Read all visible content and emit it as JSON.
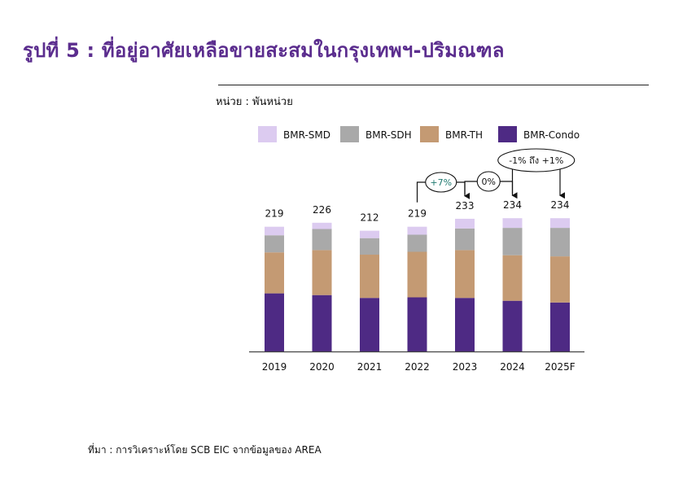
{
  "title": "รูปที่ 5 : ที่อยู่อาศัยเหลือขายสะสมในกรุงเทพฯ-ปริมณฑล",
  "unit_label": "หน่วย : พันหน่วย",
  "source": "ที่มา : การวิเคราะห์โดย SCB EIC จากข้อมูลของ AREA",
  "chart_data": {
    "type": "bar",
    "stacked": true,
    "categories": [
      "2019",
      "2020",
      "2021",
      "2022",
      "2023",
      "2024",
      "2025F"
    ],
    "series": [
      {
        "name": "BMR-Condo",
        "color": "#4e2a84",
        "values": [
          102,
          99,
          94,
          95,
          94,
          89,
          86
        ]
      },
      {
        "name": "BMR-TH",
        "color": "#c49a73",
        "values": [
          72,
          79,
          76,
          80,
          84,
          80,
          81
        ]
      },
      {
        "name": "BMR-SDH",
        "color": "#a9a9a9",
        "values": [
          30,
          37,
          29,
          30,
          38,
          48,
          50
        ]
      },
      {
        "name": "BMR-SMD",
        "color": "#dccbf0",
        "values": [
          15,
          11,
          13,
          14,
          17,
          17,
          17
        ]
      }
    ],
    "totals": [
      "219",
      "226",
      "212",
      "219",
      "233",
      "234",
      "234"
    ],
    "legend_order": [
      "BMR-SMD",
      "BMR-SDH",
      "BMR-TH",
      "BMR-Condo"
    ],
    "legend_position": "top",
    "ylim": [
      0,
      260
    ],
    "grid": false,
    "annotations": [
      {
        "text": "+7%",
        "from": "2022",
        "to": "2023",
        "text_color": "#1f7a70"
      },
      {
        "text": "0%",
        "from": "2023",
        "to": "2024",
        "text_color": "#111111"
      },
      {
        "text": "-1% ถึง +1%",
        "from": "2024",
        "to": "2025F",
        "text_color": "#111111"
      }
    ]
  }
}
